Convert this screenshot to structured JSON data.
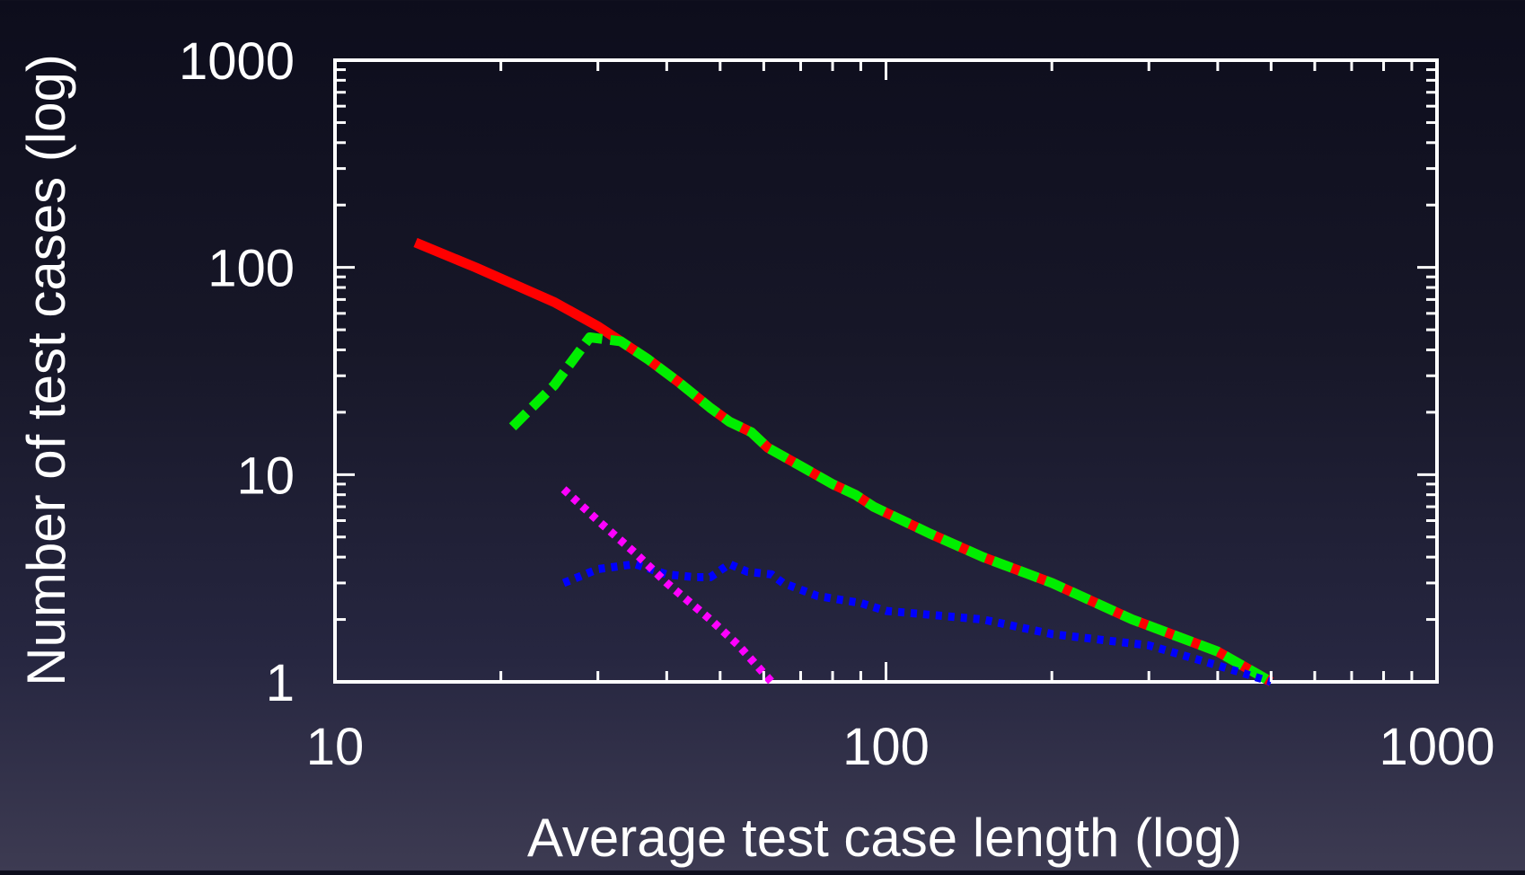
{
  "chart_data": {
    "type": "line",
    "title": "",
    "xlabel": "Average test case length (log)",
    "ylabel": "Number of test cases (log)",
    "x_scale": "log",
    "y_scale": "log",
    "xlim": [
      10,
      1000
    ],
    "ylim": [
      1,
      1000
    ],
    "x_ticks": [
      10,
      100,
      1000
    ],
    "x_tick_labels": [
      "10",
      "100",
      "1000"
    ],
    "y_ticks": [
      1,
      10,
      100,
      1000
    ],
    "y_tick_labels": [
      "1",
      "10",
      "100",
      "1000"
    ],
    "grid": false,
    "legend": "none",
    "colors": {
      "axes": "#ffffff",
      "text": "#ffffff"
    },
    "series": [
      {
        "color": "#ff0000",
        "style": "solid",
        "points": [
          [
            14,
            132
          ],
          [
            18,
            100
          ],
          [
            25,
            68
          ],
          [
            30,
            52
          ],
          [
            33,
            44
          ],
          [
            37,
            36
          ],
          [
            42,
            28
          ],
          [
            48,
            21
          ],
          [
            52,
            18
          ],
          [
            57,
            16
          ],
          [
            61,
            13.5
          ],
          [
            70,
            11
          ],
          [
            80,
            9
          ],
          [
            88,
            8
          ],
          [
            95,
            7
          ],
          [
            120,
            5.2
          ],
          [
            150,
            4
          ],
          [
            200,
            3
          ],
          [
            280,
            2
          ],
          [
            400,
            1.4
          ],
          [
            500,
            1
          ]
        ]
      },
      {
        "color": "#00ee00",
        "style": "dashed",
        "points": [
          [
            21,
            17
          ],
          [
            25,
            27
          ],
          [
            29,
            46
          ],
          [
            33,
            44
          ],
          [
            37,
            36
          ],
          [
            42,
            28
          ],
          [
            48,
            21
          ],
          [
            52,
            18
          ],
          [
            57,
            16
          ],
          [
            61,
            13.5
          ],
          [
            70,
            11
          ],
          [
            80,
            9
          ],
          [
            88,
            8
          ],
          [
            95,
            7
          ],
          [
            120,
            5.2
          ],
          [
            150,
            4
          ],
          [
            200,
            3
          ],
          [
            280,
            2
          ],
          [
            400,
            1.4
          ],
          [
            500,
            1
          ]
        ]
      },
      {
        "color": "#0000ff",
        "style": "dotted",
        "points": [
          [
            26,
            3
          ],
          [
            30,
            3.5
          ],
          [
            35,
            3.7
          ],
          [
            40,
            3.3
          ],
          [
            45,
            3.2
          ],
          [
            48,
            3.2
          ],
          [
            52,
            3.7
          ],
          [
            56,
            3.4
          ],
          [
            62,
            3.3
          ],
          [
            65,
            3
          ],
          [
            75,
            2.6
          ],
          [
            90,
            2.4
          ],
          [
            100,
            2.2
          ],
          [
            150,
            2
          ],
          [
            200,
            1.7
          ],
          [
            300,
            1.5
          ],
          [
            400,
            1.2
          ],
          [
            500,
            1
          ]
        ]
      },
      {
        "color": "#ff00ff",
        "style": "dotted",
        "points": [
          [
            26,
            8.5
          ],
          [
            30,
            6
          ],
          [
            35,
            4.2
          ],
          [
            40,
            3
          ],
          [
            48,
            2
          ],
          [
            54,
            1.5
          ],
          [
            62,
            1
          ]
        ]
      }
    ]
  }
}
